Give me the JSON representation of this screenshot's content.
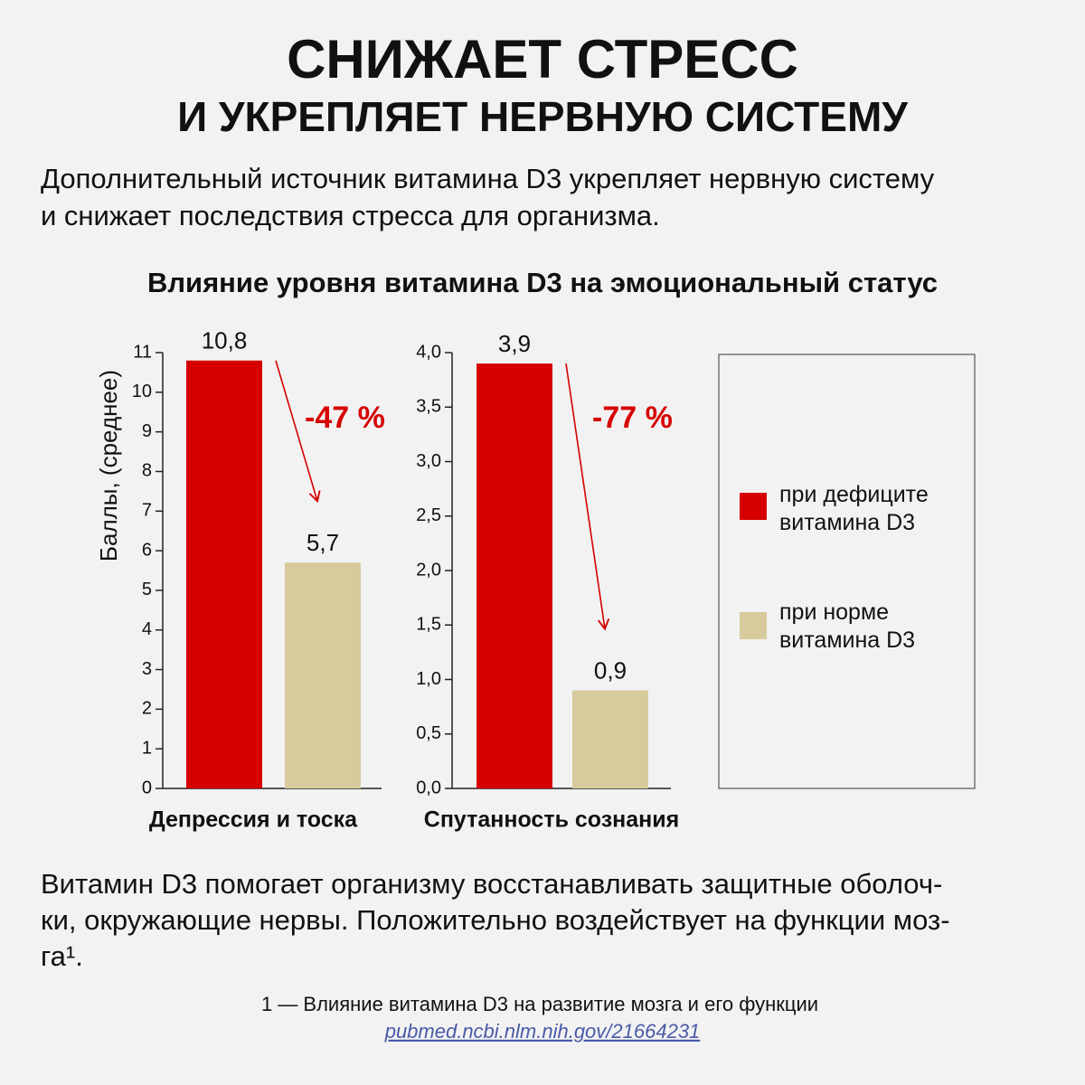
{
  "header": {
    "title": "СНИЖАЕТ СТРЕСС",
    "subtitle": "И УКРЕПЛЯЕТ НЕРВНУЮ СИСТЕМУ"
  },
  "intro": {
    "lines": [
      "Дополнительный источник витамина D3 укрепляет нервную систему",
      "и снижает последствия стресса для организма."
    ]
  },
  "charts_title": "Влияние уровня витамина D3 на эмоциональный статус",
  "chart_data": [
    {
      "type": "bar",
      "ylabel": "Баллы, (среднее)",
      "categories": [
        "Депрессия и тоска"
      ],
      "series": [
        {
          "name": "при дефиците витамина D3",
          "color": "#d60000",
          "values": [
            10.8
          ],
          "value_labels": [
            "10,8"
          ]
        },
        {
          "name": "при норме витамина D3",
          "color": "#d7cb9d",
          "values": [
            5.7
          ],
          "value_labels": [
            "5,7"
          ]
        }
      ],
      "annotation": "-47 %",
      "ylim": [
        0,
        11
      ],
      "yticks": [
        0,
        1,
        2,
        3,
        4,
        5,
        6,
        7,
        8,
        9,
        10,
        11
      ]
    },
    {
      "type": "bar",
      "categories": [
        "Спутанность сознания"
      ],
      "series": [
        {
          "color": "#d60000",
          "values": [
            3.9
          ],
          "value_labels": [
            "3,9"
          ]
        },
        {
          "color": "#d7cb9d",
          "values": [
            0.9
          ],
          "value_labels": [
            "0,9"
          ]
        }
      ],
      "annotation": "-77 %",
      "ylim": [
        0,
        4
      ],
      "yticks": [
        {
          "value": 0,
          "label": "0,0"
        },
        {
          "value": 0.5,
          "label": "0,5"
        },
        {
          "value": 1,
          "label": "1,0"
        },
        {
          "value": 1.5,
          "label": "1,5"
        },
        {
          "value": 2,
          "label": "2,0"
        },
        {
          "value": 2.5,
          "label": "2,5"
        },
        {
          "value": 3,
          "label": "3,0"
        },
        {
          "value": 3.5,
          "label": "3,5"
        },
        {
          "value": 4,
          "label": "4,0"
        }
      ]
    }
  ],
  "body": {
    "lines": [
      "Витамин D3 помогает организму восстанавливать защитные оболоч-",
      "ки, окружающие нервы. Положительно воздействует на функции моз-",
      "га¹."
    ]
  },
  "footnote": {
    "text": "1 — Влияние витамина D3 на развитие мозга и его функции",
    "link": "pubmed.ncbi.nlm.nih.gov/21664231"
  }
}
